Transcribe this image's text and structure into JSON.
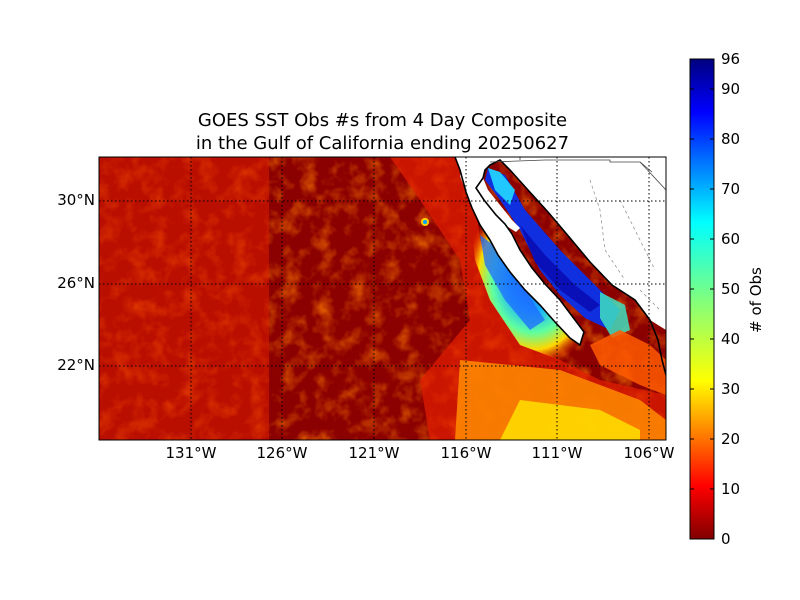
{
  "title": {
    "line1": "GOES SST Obs #s from 4 Day Composite",
    "line2": "in the Gulf of California ending 20250627"
  },
  "axes": {
    "lat_ticks": [
      "30°N",
      "26°N",
      "22°N"
    ],
    "lon_ticks": [
      "131°W",
      "126°W",
      "121°W",
      "116°W",
      "111°W",
      "106°W"
    ]
  },
  "colorbar": {
    "label": "# of Obs",
    "ticks": [
      "96",
      "90",
      "80",
      "70",
      "60",
      "50",
      "40",
      "30",
      "20",
      "10",
      "0"
    ],
    "min": 0,
    "max": 96,
    "colormap": "jet_r"
  },
  "colors": {
    "ocean_low": "#8b0000",
    "land": "#ffffff",
    "coast": "#000000",
    "grid": "#000000"
  }
}
